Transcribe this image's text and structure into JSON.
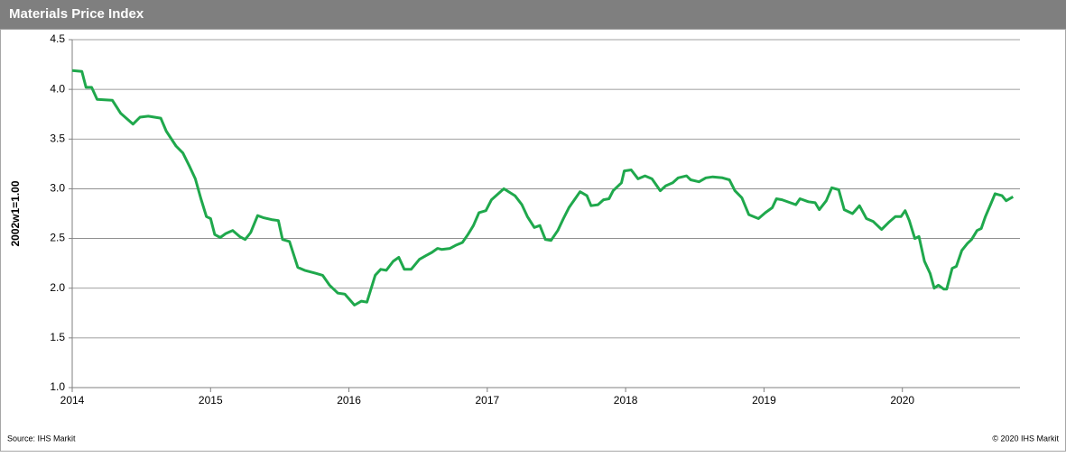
{
  "chart_data": {
    "type": "line",
    "title": "Materials Price Index",
    "y_label": "2002w1=1.00",
    "source": "Source:  IHS Markit",
    "copyright": "© 2020  IHS Markit",
    "grid": true,
    "xlim": [
      2014,
      2020.85
    ],
    "xticks": [
      2014,
      2015,
      2016,
      2017,
      2018,
      2019,
      2020
    ],
    "ylim": [
      1.0,
      4.5
    ],
    "yticks": [
      {
        "value": 1.0,
        "label": "1.0"
      },
      1.5,
      {
        "value": 2.0,
        "label": "2.0"
      },
      2.5,
      {
        "value": 3.0,
        "label": "3.0"
      },
      3.5,
      {
        "value": 4.0,
        "label": "4.0"
      },
      4.5
    ],
    "x": [
      2014.0,
      2014.07,
      2014.1,
      2014.14,
      2014.18,
      2014.29,
      2014.35,
      2014.44,
      2014.49,
      2014.55,
      2014.64,
      2014.68,
      2014.75,
      2014.8,
      2014.85,
      2014.89,
      2014.93,
      2014.97,
      2015.0,
      2015.03,
      2015.07,
      2015.11,
      2015.16,
      2015.21,
      2015.25,
      2015.29,
      2015.34,
      2015.38,
      2015.44,
      2015.49,
      2015.52,
      2015.57,
      2015.63,
      2015.68,
      2015.76,
      2015.81,
      2015.86,
      2015.92,
      2015.97,
      2016.04,
      2016.09,
      2016.13,
      2016.19,
      2016.23,
      2016.27,
      2016.32,
      2016.36,
      2016.4,
      2016.45,
      2016.51,
      2016.56,
      2016.6,
      2016.64,
      2016.67,
      2016.73,
      2016.77,
      2016.82,
      2016.86,
      2016.9,
      2016.94,
      2016.99,
      2017.03,
      2017.12,
      2017.2,
      2017.25,
      2017.29,
      2017.34,
      2017.38,
      2017.42,
      2017.46,
      2017.51,
      2017.55,
      2017.59,
      2017.63,
      2017.67,
      2017.72,
      2017.75,
      2017.8,
      2017.84,
      2017.88,
      2017.91,
      2017.97,
      2017.99,
      2018.04,
      2018.09,
      2018.14,
      2018.19,
      2018.25,
      2018.29,
      2018.34,
      2018.38,
      2018.44,
      2018.47,
      2018.53,
      2018.58,
      2018.63,
      2018.7,
      2018.75,
      2018.79,
      2018.84,
      2018.89,
      2018.96,
      2019.01,
      2019.06,
      2019.09,
      2019.13,
      2019.19,
      2019.23,
      2019.26,
      2019.32,
      2019.37,
      2019.4,
      2019.45,
      2019.49,
      2019.54,
      2019.58,
      2019.64,
      2019.69,
      2019.74,
      2019.79,
      2019.85,
      2019.9,
      2019.95,
      2019.99,
      2020.02,
      2020.05,
      2020.09,
      2020.12,
      2020.16,
      2020.2,
      2020.23,
      2020.26,
      2020.3,
      2020.32,
      2020.36,
      2020.39,
      2020.43,
      2020.47,
      2020.5,
      2020.54,
      2020.57,
      2020.6,
      2020.64,
      2020.67,
      2020.72,
      2020.75,
      2020.8
    ],
    "series": [
      {
        "name": "Materials Price Index",
        "color": "#1fa84c",
        "values": [
          4.19,
          4.18,
          4.02,
          4.02,
          3.9,
          3.89,
          3.76,
          3.65,
          3.72,
          3.73,
          3.71,
          3.58,
          3.43,
          3.36,
          3.22,
          3.1,
          2.9,
          2.72,
          2.7,
          2.54,
          2.51,
          2.55,
          2.58,
          2.52,
          2.49,
          2.56,
          2.73,
          2.71,
          2.69,
          2.68,
          2.49,
          2.47,
          2.21,
          2.18,
          2.15,
          2.13,
          2.03,
          1.95,
          1.94,
          1.83,
          1.87,
          1.86,
          2.13,
          2.19,
          2.18,
          2.27,
          2.31,
          2.19,
          2.19,
          2.29,
          2.33,
          2.36,
          2.4,
          2.39,
          2.4,
          2.43,
          2.46,
          2.54,
          2.63,
          2.76,
          2.78,
          2.89,
          3.0,
          2.93,
          2.84,
          2.72,
          2.61,
          2.63,
          2.49,
          2.48,
          2.58,
          2.7,
          2.81,
          2.89,
          2.97,
          2.93,
          2.83,
          2.84,
          2.89,
          2.9,
          2.98,
          3.06,
          3.18,
          3.19,
          3.1,
          3.13,
          3.1,
          2.98,
          3.03,
          3.06,
          3.11,
          3.13,
          3.09,
          3.07,
          3.11,
          3.12,
          3.11,
          3.09,
          2.98,
          2.91,
          2.74,
          2.7,
          2.76,
          2.81,
          2.9,
          2.89,
          2.86,
          2.84,
          2.9,
          2.87,
          2.86,
          2.79,
          2.88,
          3.01,
          2.99,
          2.79,
          2.75,
          2.83,
          2.7,
          2.67,
          2.59,
          2.66,
          2.72,
          2.72,
          2.78,
          2.68,
          2.5,
          2.52,
          2.27,
          2.15,
          2.0,
          2.03,
          1.99,
          1.99,
          2.2,
          2.22,
          2.38,
          2.45,
          2.49,
          2.58,
          2.6,
          2.72,
          2.85,
          2.95,
          2.93,
          2.88,
          2.92
        ]
      }
    ]
  }
}
